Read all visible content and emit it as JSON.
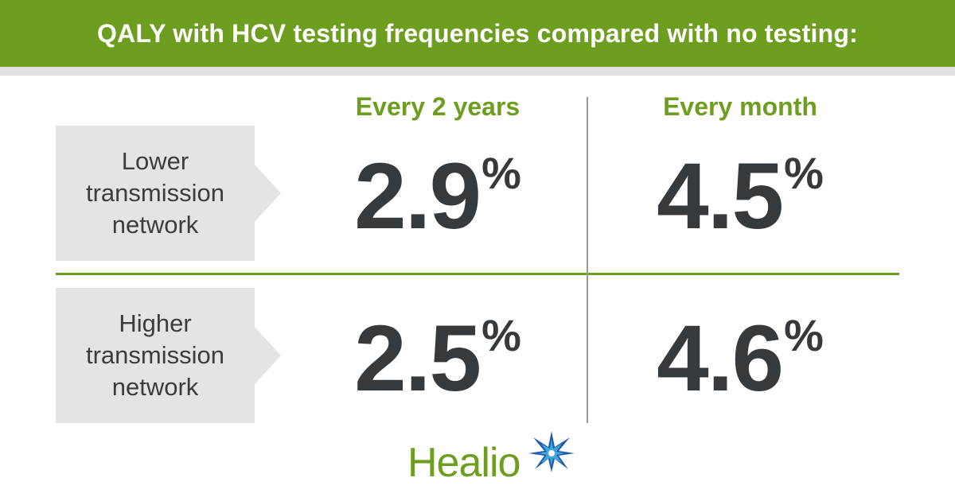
{
  "header": {
    "title": "QALY with HCV testing frequencies compared with no testing:"
  },
  "columns": [
    {
      "label": "Every 2 years"
    },
    {
      "label": "Every month"
    }
  ],
  "rows": [
    {
      "label": "Lower transmission network",
      "values": [
        {
          "number": "2.9",
          "unit": "%"
        },
        {
          "number": "4.5",
          "unit": "%"
        }
      ]
    },
    {
      "label": "Higher transmission network",
      "values": [
        {
          "number": "2.5",
          "unit": "%"
        },
        {
          "number": "4.6",
          "unit": "%"
        }
      ]
    }
  ],
  "logo": {
    "text": "Healio",
    "star_icon": "starburst-icon",
    "colors": {
      "green": "#6e9e1f",
      "blue": "#1e5aa8",
      "light_blue": "#41a6e0"
    }
  },
  "colors": {
    "accent_green": "#6e9e1f",
    "label_bg": "#e4e4e4",
    "value_text": "#373a3d"
  }
}
